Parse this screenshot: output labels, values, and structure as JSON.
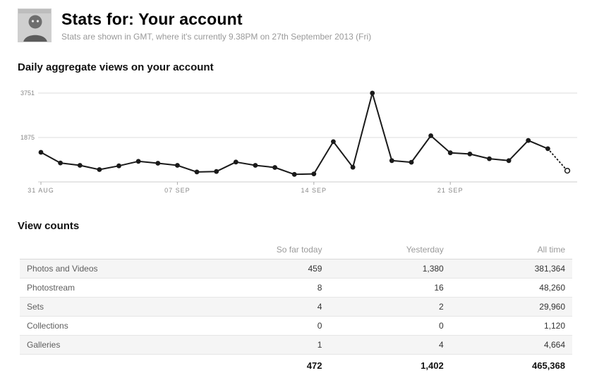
{
  "header": {
    "title": "Stats for: Your account",
    "subtitle": "Stats are shown in GMT, where it's currently 9.38PM on 27th September 2013 (Fri)",
    "avatar_icon": "user-portrait-avatar"
  },
  "sections": {
    "chart_heading": "Daily aggregate views on your account",
    "table_heading": "View counts"
  },
  "chart_data": {
    "type": "line",
    "title": "Daily aggregate views on your account",
    "x": [
      "31 Aug",
      "01 Sep",
      "02 Sep",
      "03 Sep",
      "04 Sep",
      "05 Sep",
      "06 Sep",
      "07 Sep",
      "08 Sep",
      "09 Sep",
      "10 Sep",
      "11 Sep",
      "12 Sep",
      "13 Sep",
      "14 Sep",
      "15 Sep",
      "16 Sep",
      "17 Sep",
      "18 Sep",
      "19 Sep",
      "20 Sep",
      "21 Sep",
      "22 Sep",
      "23 Sep",
      "24 Sep",
      "25 Sep",
      "26 Sep",
      "27 Sep"
    ],
    "values": [
      1250,
      800,
      700,
      520,
      680,
      870,
      790,
      700,
      420,
      440,
      840,
      700,
      610,
      320,
      340,
      1700,
      620,
      3751,
      900,
      830,
      1950,
      1230,
      1180,
      980,
      900,
      1750,
      1402,
      472
    ],
    "x_tick_labels": [
      "31 AUG",
      "07 SEP",
      "14 SEP",
      "21 SEP"
    ],
    "x_tick_indices": [
      0,
      7,
      14,
      21
    ],
    "y_ticks": [
      "1875",
      "3751"
    ],
    "ylim": [
      0,
      3751
    ],
    "grid": true,
    "legend": "none",
    "last_point_open": true,
    "line_color": "#1a1a1a",
    "grid_color": "#dddddd",
    "axis_label_color": "#888888"
  },
  "table": {
    "columns": [
      "So far today",
      "Yesterday",
      "All time"
    ],
    "rows": [
      {
        "label": "Photos and Videos",
        "values": [
          "459",
          "1,380",
          "381,364"
        ]
      },
      {
        "label": "Photostream",
        "values": [
          "8",
          "16",
          "48,260"
        ]
      },
      {
        "label": "Sets",
        "values": [
          "4",
          "2",
          "29,960"
        ]
      },
      {
        "label": "Collections",
        "values": [
          "0",
          "0",
          "1,120"
        ]
      },
      {
        "label": "Galleries",
        "values": [
          "1",
          "4",
          "4,664"
        ]
      }
    ],
    "totals": [
      "472",
      "1,402",
      "465,368"
    ]
  }
}
